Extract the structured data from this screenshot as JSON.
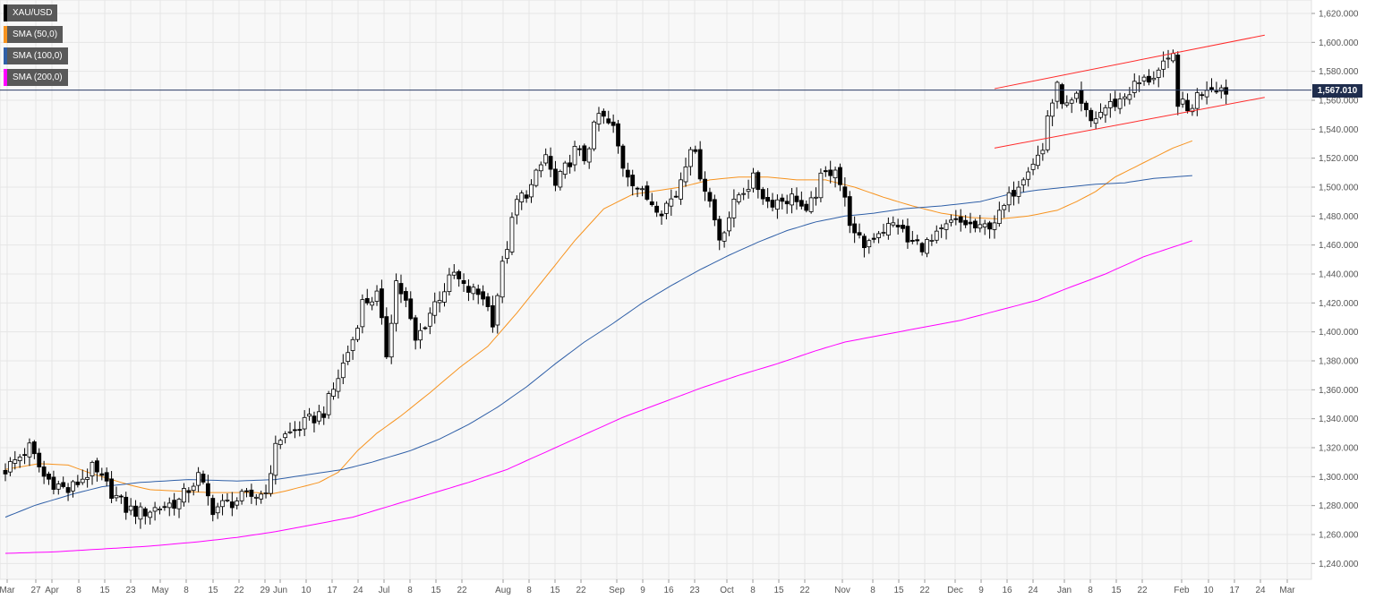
{
  "legend": [
    {
      "label": "XAU/USD",
      "color": "#000000"
    },
    {
      "label": "SMA (50,0)",
      "color": "#f7931e"
    },
    {
      "label": "SMA (100,0)",
      "color": "#2f5fa7"
    },
    {
      "label": "SMA (200,0)",
      "color": "#ff00ff"
    }
  ],
  "last_price": "1,567.010",
  "chart_data": {
    "type": "candlestick",
    "title": "",
    "xlabel": "",
    "ylabel": "",
    "ylim": [
      1230,
      1630
    ],
    "y_ticks": [
      "1,240.000",
      "1,260.000",
      "1,280.000",
      "1,300.000",
      "1,320.000",
      "1,340.000",
      "1,360.000",
      "1,380.000",
      "1,400.000",
      "1,420.000",
      "1,440.000",
      "1,460.000",
      "1,480.000",
      "1,500.000",
      "1,520.000",
      "1,540.000",
      "1,560.000",
      "1,580.000",
      "1,600.000",
      "1,620.000"
    ],
    "x_ticks": [
      "Mar",
      "27",
      "Apr",
      "8",
      "15",
      "23",
      "May",
      "8",
      "15",
      "22",
      "29",
      "Jun",
      "10",
      "17",
      "24",
      "Jul",
      "8",
      "15",
      "22",
      "Aug",
      "8",
      "15",
      "22",
      "Sep",
      "9",
      "16",
      "23",
      "Oct",
      "8",
      "15",
      "22",
      "Nov",
      "8",
      "15",
      "22",
      "Dec",
      "9",
      "16",
      "24",
      "Jan",
      "8",
      "15",
      "22",
      "Feb",
      "10",
      "17",
      "24",
      "Mar"
    ],
    "grid": true,
    "price_line": 1567.01,
    "close_keypoints": [
      [
        0,
        1305
      ],
      [
        5,
        1320
      ],
      [
        8,
        1300
      ],
      [
        13,
        1290
      ],
      [
        18,
        1305
      ],
      [
        25,
        1278
      ],
      [
        28,
        1275
      ],
      [
        36,
        1283
      ],
      [
        40,
        1300
      ],
      [
        43,
        1278
      ],
      [
        49,
        1285
      ],
      [
        53,
        1288
      ],
      [
        55,
        1298
      ],
      [
        56,
        1325
      ],
      [
        59,
        1330
      ],
      [
        66,
        1345
      ],
      [
        68,
        1360
      ],
      [
        72,
        1395
      ],
      [
        74,
        1420
      ],
      [
        77,
        1425
      ],
      [
        79,
        1385
      ],
      [
        81,
        1435
      ],
      [
        83,
        1420
      ],
      [
        85,
        1393
      ],
      [
        89,
        1420
      ],
      [
        93,
        1440
      ],
      [
        95,
        1430
      ],
      [
        99,
        1425
      ],
      [
        101,
        1408
      ],
      [
        103,
        1445
      ],
      [
        106,
        1490
      ],
      [
        109,
        1500
      ],
      [
        112,
        1522
      ],
      [
        114,
        1500
      ],
      [
        118,
        1525
      ],
      [
        120,
        1520
      ],
      [
        123,
        1550
      ],
      [
        126,
        1540
      ],
      [
        128,
        1515
      ],
      [
        132,
        1495
      ],
      [
        136,
        1485
      ],
      [
        139,
        1495
      ],
      [
        142,
        1530
      ],
      [
        146,
        1490
      ],
      [
        148,
        1465
      ],
      [
        152,
        1495
      ],
      [
        155,
        1505
      ],
      [
        158,
        1490
      ],
      [
        164,
        1493
      ],
      [
        166,
        1480
      ],
      [
        169,
        1505
      ],
      [
        172,
        1515
      ],
      [
        174,
        1490
      ],
      [
        176,
        1465
      ],
      [
        178,
        1460
      ],
      [
        181,
        1470
      ],
      [
        185,
        1475
      ],
      [
        187,
        1462
      ],
      [
        190,
        1460
      ],
      [
        192,
        1462
      ],
      [
        196,
        1475
      ],
      [
        199,
        1475
      ],
      [
        202,
        1470
      ],
      [
        206,
        1480
      ],
      [
        209,
        1498
      ],
      [
        212,
        1515
      ],
      [
        215,
        1525
      ],
      [
        216,
        1550
      ],
      [
        218,
        1568
      ],
      [
        220,
        1555
      ],
      [
        222,
        1560
      ],
      [
        225,
        1545
      ],
      [
        228,
        1555
      ],
      [
        231,
        1560
      ],
      [
        234,
        1570
      ],
      [
        237,
        1575
      ],
      [
        239,
        1580
      ],
      [
        241,
        1585
      ],
      [
        242,
        1590
      ],
      [
        243,
        1560
      ],
      [
        245,
        1552
      ],
      [
        247,
        1563
      ],
      [
        249,
        1570
      ],
      [
        251,
        1570
      ],
      [
        253,
        1567
      ]
    ],
    "sma50_keypoints": [
      [
        0,
        1305
      ],
      [
        7,
        1309
      ],
      [
        13,
        1308
      ],
      [
        18,
        1302
      ],
      [
        22,
        1298
      ],
      [
        26,
        1294
      ],
      [
        30,
        1291
      ],
      [
        36,
        1290
      ],
      [
        42,
        1289
      ],
      [
        48,
        1289
      ],
      [
        52,
        1289
      ],
      [
        55,
        1288
      ],
      [
        58,
        1290
      ],
      [
        65,
        1296
      ],
      [
        69,
        1303
      ],
      [
        73,
        1318
      ],
      [
        77,
        1330
      ],
      [
        82,
        1342
      ],
      [
        88,
        1358
      ],
      [
        94,
        1375
      ],
      [
        100,
        1390
      ],
      [
        106,
        1413
      ],
      [
        112,
        1438
      ],
      [
        118,
        1463
      ],
      [
        124,
        1485
      ],
      [
        130,
        1495
      ],
      [
        136,
        1498
      ],
      [
        140,
        1500
      ],
      [
        146,
        1505
      ],
      [
        152,
        1507
      ],
      [
        158,
        1507
      ],
      [
        164,
        1505
      ],
      [
        170,
        1505
      ],
      [
        176,
        1500
      ],
      [
        182,
        1493
      ],
      [
        188,
        1487
      ],
      [
        194,
        1482
      ],
      [
        200,
        1479
      ],
      [
        206,
        1478
      ],
      [
        212,
        1480
      ],
      [
        218,
        1484
      ],
      [
        222,
        1490
      ],
      [
        226,
        1497
      ],
      [
        230,
        1507
      ],
      [
        236,
        1517
      ],
      [
        242,
        1527
      ],
      [
        246,
        1532
      ]
    ],
    "sma100_keypoints": [
      [
        0,
        1272
      ],
      [
        6,
        1280
      ],
      [
        14,
        1288
      ],
      [
        20,
        1293
      ],
      [
        28,
        1296
      ],
      [
        38,
        1298
      ],
      [
        48,
        1297
      ],
      [
        56,
        1298
      ],
      [
        62,
        1301
      ],
      [
        70,
        1305
      ],
      [
        76,
        1310
      ],
      [
        84,
        1318
      ],
      [
        90,
        1326
      ],
      [
        96,
        1336
      ],
      [
        102,
        1348
      ],
      [
        108,
        1362
      ],
      [
        114,
        1378
      ],
      [
        120,
        1393
      ],
      [
        126,
        1406
      ],
      [
        132,
        1420
      ],
      [
        138,
        1432
      ],
      [
        144,
        1443
      ],
      [
        150,
        1453
      ],
      [
        156,
        1462
      ],
      [
        162,
        1470
      ],
      [
        168,
        1476
      ],
      [
        174,
        1480
      ],
      [
        180,
        1482
      ],
      [
        186,
        1485
      ],
      [
        194,
        1487
      ],
      [
        202,
        1490
      ],
      [
        208,
        1495
      ],
      [
        214,
        1498
      ],
      [
        220,
        1500
      ],
      [
        226,
        1502
      ],
      [
        232,
        1503
      ],
      [
        238,
        1506
      ],
      [
        246,
        1508
      ]
    ],
    "sma200_keypoints": [
      [
        0,
        1247
      ],
      [
        10,
        1248
      ],
      [
        20,
        1250
      ],
      [
        30,
        1252
      ],
      [
        40,
        1255
      ],
      [
        48,
        1258
      ],
      [
        56,
        1262
      ],
      [
        64,
        1267
      ],
      [
        72,
        1272
      ],
      [
        80,
        1280
      ],
      [
        88,
        1288
      ],
      [
        96,
        1296
      ],
      [
        104,
        1305
      ],
      [
        112,
        1317
      ],
      [
        120,
        1329
      ],
      [
        128,
        1341
      ],
      [
        136,
        1351
      ],
      [
        144,
        1361
      ],
      [
        152,
        1370
      ],
      [
        160,
        1378
      ],
      [
        168,
        1387
      ],
      [
        174,
        1393
      ],
      [
        182,
        1398
      ],
      [
        190,
        1403
      ],
      [
        198,
        1408
      ],
      [
        206,
        1415
      ],
      [
        214,
        1422
      ],
      [
        220,
        1430
      ],
      [
        228,
        1440
      ],
      [
        236,
        1452
      ],
      [
        246,
        1463
      ]
    ],
    "channel_upper": [
      [
        205,
        1568
      ],
      [
        261,
        1605
      ]
    ],
    "channel_lower": [
      [
        205,
        1527
      ],
      [
        261,
        1562
      ]
    ]
  }
}
